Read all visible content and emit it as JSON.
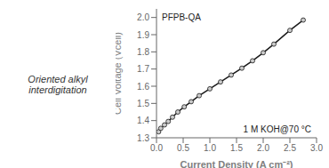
{
  "chart_data": {
    "type": "line",
    "xlabel": "Current Density (A cm⁻²)",
    "ylabel": "Cell Voltage (Vcell)",
    "x": [
      0.04,
      0.08,
      0.15,
      0.22,
      0.3,
      0.4,
      0.52,
      0.65,
      0.8,
      1.0,
      1.2,
      1.4,
      1.6,
      1.8,
      2.0,
      2.2,
      2.5,
      2.75
    ],
    "values": [
      1.335,
      1.355,
      1.375,
      1.395,
      1.42,
      1.45,
      1.48,
      1.51,
      1.545,
      1.585,
      1.625,
      1.665,
      1.705,
      1.748,
      1.795,
      1.845,
      1.925,
      1.985
    ],
    "color": "#1a1a1a",
    "marker": "circle",
    "xlim": [
      0.0,
      3.0
    ],
    "ylim": [
      1.3,
      2.05
    ],
    "xticks": [
      {
        "value": 0,
        "label": "0.0"
      },
      0.5,
      {
        "value": 1,
        "label": "1.0"
      },
      1.5,
      {
        "value": 2,
        "label": "2.0"
      },
      2.5,
      {
        "value": 3,
        "label": "3.0"
      }
    ],
    "yticks": [
      1.3,
      1.4,
      1.5,
      1.6,
      1.7,
      1.8,
      1.9,
      {
        "value": 2,
        "label": "2.0"
      }
    ],
    "grid": false,
    "annotations": [
      {
        "text": "PFPB-QA"
      },
      {
        "text": "1 M KOH@70 °C"
      },
      {
        "text": "Oriented alkyl interdigitation"
      }
    ]
  }
}
